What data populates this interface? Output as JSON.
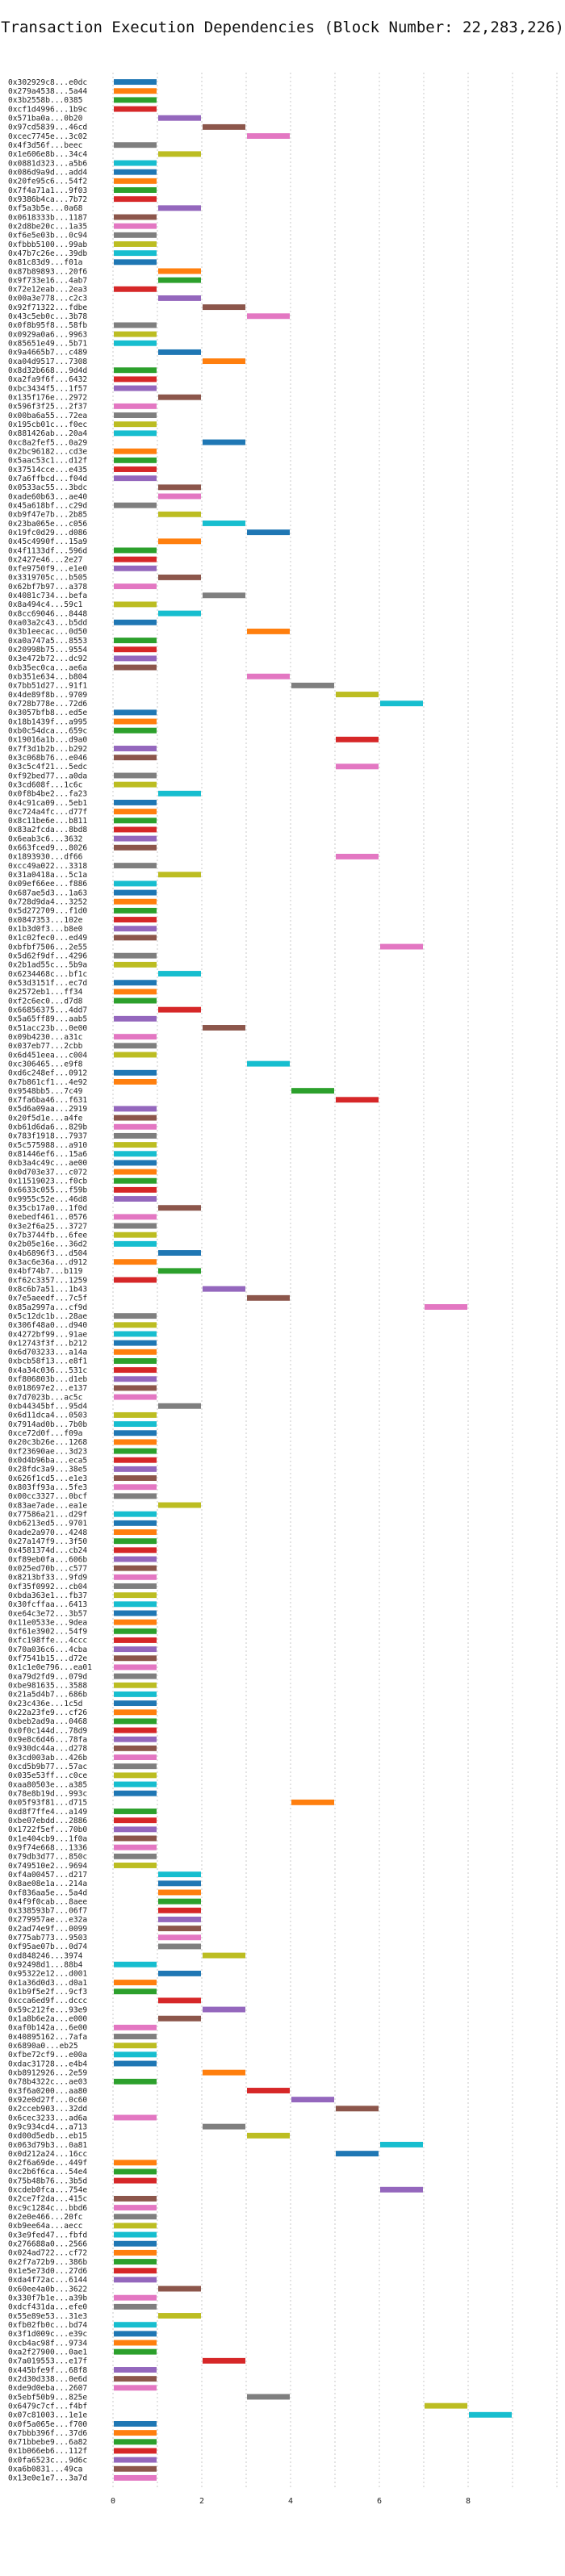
{
  "chart_data": {
    "type": "gantt-bar",
    "title": "Transaction Execution Dependencies (Block Number: 22,283,226)",
    "xlim": [
      0,
      10
    ],
    "xticks": [
      0,
      2,
      4,
      6,
      8
    ],
    "grid": "vertical dashed",
    "colors": [
      "#1f77b4",
      "#ff7f0e",
      "#2ca02c",
      "#d62728",
      "#9467bd",
      "#8c564b",
      "#e377c2",
      "#7f7f7f",
      "#bcbd22",
      "#17becf"
    ],
    "transactions": [
      {
        "hash": "0x302929c8...e0dc",
        "start": 0
      },
      {
        "hash": "0x279a4538...5a44",
        "start": 0
      },
      {
        "hash": "0x3b2558b...0385",
        "start": 0
      },
      {
        "hash": "0xcf1d4996...1b9c",
        "start": 0
      },
      {
        "hash": "0x571ba0a...0b20",
        "start": 1
      },
      {
        "hash": "0x97cd5839...46cd",
        "start": 2
      },
      {
        "hash": "0xcec7745e...3c02",
        "start": 3
      },
      {
        "hash": "0x4f3d56f...beec",
        "start": 0
      },
      {
        "hash": "0x1e606e8b...34c4",
        "start": 1
      },
      {
        "hash": "0x0881d323...a5b6",
        "start": 0
      },
      {
        "hash": "0x086d9a9d...add4",
        "start": 0
      },
      {
        "hash": "0x20fe95c6...54f2",
        "start": 0
      },
      {
        "hash": "0x7f4a71a1...9f03",
        "start": 0
      },
      {
        "hash": "0x9386b4ca...7b72",
        "start": 0
      },
      {
        "hash": "0xf5a3b5e...0a68",
        "start": 1
      },
      {
        "hash": "0x0618333b...1187",
        "start": 0
      },
      {
        "hash": "0x2d8be20c...1a35",
        "start": 0
      },
      {
        "hash": "0xf6e5e03b...0c94",
        "start": 0
      },
      {
        "hash": "0xfbbb5100...99ab",
        "start": 0
      },
      {
        "hash": "0x47b7c26e...39db",
        "start": 0
      },
      {
        "hash": "0x81c83d9...f01a",
        "start": 0
      },
      {
        "hash": "0x87b89893...20f6",
        "start": 1
      },
      {
        "hash": "0x9f733e16...4ab7",
        "start": 1
      },
      {
        "hash": "0x72e12eab...2ea3",
        "start": 0
      },
      {
        "hash": "0x00a3e778...c2c3",
        "start": 1
      },
      {
        "hash": "0x92f71322...fdbe",
        "start": 2
      },
      {
        "hash": "0x43c5eb0c...3b78",
        "start": 3
      },
      {
        "hash": "0x0f8b95f8...58fb",
        "start": 0
      },
      {
        "hash": "0x0929a0a6...9963",
        "start": 0
      },
      {
        "hash": "0x85651e49...5b71",
        "start": 0
      },
      {
        "hash": "0x9a4665b7...c489",
        "start": 1
      },
      {
        "hash": "0xa04d9517...7308",
        "start": 2
      },
      {
        "hash": "0x8d32b668...9d4d",
        "start": 0
      },
      {
        "hash": "0xa2fa9f6f...6432",
        "start": 0
      },
      {
        "hash": "0xbc3434f5...1f57",
        "start": 0
      },
      {
        "hash": "0x135f176e...2972",
        "start": 1
      },
      {
        "hash": "0x596f3f25...2f37",
        "start": 0
      },
      {
        "hash": "0x00ba6a55...72ea",
        "start": 0
      },
      {
        "hash": "0x195cb01c...f0ec",
        "start": 0
      },
      {
        "hash": "0x881426ab...20a4",
        "start": 0
      },
      {
        "hash": "0xc8a2fef5...0a29",
        "start": 2
      },
      {
        "hash": "0x2bc96182...cd3e",
        "start": 0
      },
      {
        "hash": "0x5aac53c1...d12f",
        "start": 0
      },
      {
        "hash": "0x37514cce...e435",
        "start": 0
      },
      {
        "hash": "0x7a6ffbcd...f04d",
        "start": 0
      },
      {
        "hash": "0x0533ac55...3bdc",
        "start": 1
      },
      {
        "hash": "0xade60b63...ae40",
        "start": 1
      },
      {
        "hash": "0x45a618bf...c29d",
        "start": 0
      },
      {
        "hash": "0xb9f47e7b...2b85",
        "start": 1
      },
      {
        "hash": "0x23ba065e...c056",
        "start": 2
      },
      {
        "hash": "0x19fc0d29...d086",
        "start": 3
      },
      {
        "hash": "0x45c4990f...15a9",
        "start": 1
      },
      {
        "hash": "0x4f1133df...596d",
        "start": 0
      },
      {
        "hash": "0x2427e46...2e27",
        "start": 0
      },
      {
        "hash": "0xfe9750f9...e1e0",
        "start": 0
      },
      {
        "hash": "0x3319705c...b505",
        "start": 1
      },
      {
        "hash": "0x62bf7b97...a378",
        "start": 0
      },
      {
        "hash": "0x4081c734...befa",
        "start": 2
      },
      {
        "hash": "0x8a494c4...59c1",
        "start": 0
      },
      {
        "hash": "0x8cc69046...8448",
        "start": 1
      },
      {
        "hash": "0xa03a2c43...b5dd",
        "start": 0
      },
      {
        "hash": "0x3b1eecac...0d50",
        "start": 3
      },
      {
        "hash": "0xa0a747a5...8553",
        "start": 0
      },
      {
        "hash": "0x20998b75...9554",
        "start": 0
      },
      {
        "hash": "0x3e472b72...dc92",
        "start": 0
      },
      {
        "hash": "0xb35ec0ca...ae6a",
        "start": 0
      },
      {
        "hash": "0xb351e634...b804",
        "start": 3
      },
      {
        "hash": "0x7bb51d27...91f1",
        "start": 4
      },
      {
        "hash": "0x4de89f8b...9709",
        "start": 5
      },
      {
        "hash": "0x728b778e...72d6",
        "start": 6
      },
      {
        "hash": "0x3057bfb8...ed5e",
        "start": 0
      },
      {
        "hash": "0x18b1439f...a995",
        "start": 0
      },
      {
        "hash": "0xb0c54dca...659c",
        "start": 0
      },
      {
        "hash": "0x19016a1b...d9a0",
        "start": 5
      },
      {
        "hash": "0x7f3d1b2b...b292",
        "start": 0
      },
      {
        "hash": "0x3c068b76...e046",
        "start": 0
      },
      {
        "hash": "0x3c5c4f21...5edc",
        "start": 5
      },
      {
        "hash": "0xf92bed77...a0da",
        "start": 0
      },
      {
        "hash": "0x3cd608f...1c6c",
        "start": 0
      },
      {
        "hash": "0x0f8b4be2...fa23",
        "start": 1
      },
      {
        "hash": "0x4c91ca09...5eb1",
        "start": 0
      },
      {
        "hash": "0xc724a4fc...d77f",
        "start": 0
      },
      {
        "hash": "0x8c11be6e...b811",
        "start": 0
      },
      {
        "hash": "0x83a2fcda...8bd8",
        "start": 0
      },
      {
        "hash": "0x6eab3c6...3632",
        "start": 0
      },
      {
        "hash": "0x663fced9...8026",
        "start": 0
      },
      {
        "hash": "0x1893930...df66",
        "start": 5
      },
      {
        "hash": "0xcc49a022...3318",
        "start": 0
      },
      {
        "hash": "0x31a0418a...5c1a",
        "start": 1
      },
      {
        "hash": "0x09ef66ee...f886",
        "start": 0
      },
      {
        "hash": "0x687ae5d3...1a63",
        "start": 0
      },
      {
        "hash": "0x728d9da4...3252",
        "start": 0
      },
      {
        "hash": "0x5d272709...f1d0",
        "start": 0
      },
      {
        "hash": "0x0847353...102e",
        "start": 0
      },
      {
        "hash": "0x1b3d0f3...b8e0",
        "start": 0
      },
      {
        "hash": "0x1c02fec0...ed49",
        "start": 0
      },
      {
        "hash": "0xbfbf7506...2e55",
        "start": 6
      },
      {
        "hash": "0x5d62f9df...4296",
        "start": 0
      },
      {
        "hash": "0x2b1ad55c...5b9a",
        "start": 0
      },
      {
        "hash": "0x6234468c...bf1c",
        "start": 1
      },
      {
        "hash": "0x53d3151f...ec7d",
        "start": 0
      },
      {
        "hash": "0x2572eb1...ff34",
        "start": 0
      },
      {
        "hash": "0xf2c6ec0...d7d8",
        "start": 0
      },
      {
        "hash": "0x66856375...4dd7",
        "start": 1
      },
      {
        "hash": "0x5a65ff89...aab5",
        "start": 0
      },
      {
        "hash": "0x51acc23b...0e00",
        "start": 2
      },
      {
        "hash": "0x09b4230...a31c",
        "start": 0
      },
      {
        "hash": "0x037eb77...2cbb",
        "start": 0
      },
      {
        "hash": "0x6d451eea...c004",
        "start": 0
      },
      {
        "hash": "0xc306465...e9f8",
        "start": 3
      },
      {
        "hash": "0xd6c248ef...0912",
        "start": 0
      },
      {
        "hash": "0x7b861cf1...4e92",
        "start": 0
      },
      {
        "hash": "0x9548bb5...7c49",
        "start": 4
      },
      {
        "hash": "0x7fa6ba46...f631",
        "start": 5
      },
      {
        "hash": "0x5d6a09aa...2919",
        "start": 0
      },
      {
        "hash": "0x20f5d1e...a4fe",
        "start": 0
      },
      {
        "hash": "0xb61d6da6...829b",
        "start": 0
      },
      {
        "hash": "0x783f1918...7937",
        "start": 0
      },
      {
        "hash": "0x5c575988...a910",
        "start": 0
      },
      {
        "hash": "0x81446ef6...15a6",
        "start": 0
      },
      {
        "hash": "0xb3a4c49c...ae00",
        "start": 0
      },
      {
        "hash": "0x0d703e37...c072",
        "start": 0
      },
      {
        "hash": "0x11519023...f0cb",
        "start": 0
      },
      {
        "hash": "0x6633c055...f59b",
        "start": 0
      },
      {
        "hash": "0x9955c52e...46d8",
        "start": 0
      },
      {
        "hash": "0x35cb17a0...1f0d",
        "start": 1
      },
      {
        "hash": "0xebedf461...0576",
        "start": 0
      },
      {
        "hash": "0x3e2f6a25...3727",
        "start": 0
      },
      {
        "hash": "0x7b3744fb...6fee",
        "start": 0
      },
      {
        "hash": "0x2b05e16e...36d2",
        "start": 0
      },
      {
        "hash": "0x4b6896f3...d504",
        "start": 1
      },
      {
        "hash": "0x3ac6e36a...d912",
        "start": 0
      },
      {
        "hash": "0x4bf74b7...b119",
        "start": 1
      },
      {
        "hash": "0xf62c3357...1259",
        "start": 0
      },
      {
        "hash": "0x8c6b7a51...1b43",
        "start": 2
      },
      {
        "hash": "0x7e5aeedf...7c5f",
        "start": 3
      },
      {
        "hash": "0x85a2997a...cf9d",
        "start": 7
      },
      {
        "hash": "0x5c12dc1b...28ae",
        "start": 0
      },
      {
        "hash": "0x306f48a0...d940",
        "start": 0
      },
      {
        "hash": "0x4272bf99...91ae",
        "start": 0
      },
      {
        "hash": "0x12743f3f...b212",
        "start": 0
      },
      {
        "hash": "0x6d703233...a14a",
        "start": 0
      },
      {
        "hash": "0xbcb58f13...e8f1",
        "start": 0
      },
      {
        "hash": "0x4a34c036...531c",
        "start": 0
      },
      {
        "hash": "0xf806803b...d1eb",
        "start": 0
      },
      {
        "hash": "0x018697e2...e137",
        "start": 0
      },
      {
        "hash": "0x7d7023b...ac5c",
        "start": 0
      },
      {
        "hash": "0xb44345bf...95d4",
        "start": 1
      },
      {
        "hash": "0x6d11dca4...0503",
        "start": 0
      },
      {
        "hash": "0x7914ad0b...7b0b",
        "start": 0
      },
      {
        "hash": "0xce72d0f...f09a",
        "start": 0
      },
      {
        "hash": "0x20c3b26e...1268",
        "start": 0
      },
      {
        "hash": "0xf23690ae...3d23",
        "start": 0
      },
      {
        "hash": "0x0d4b96ba...eca5",
        "start": 0
      },
      {
        "hash": "0x28fdc3a9...38e5",
        "start": 0
      },
      {
        "hash": "0x626f1cd5...e1e3",
        "start": 0
      },
      {
        "hash": "0x803ff93a...5fe3",
        "start": 0
      },
      {
        "hash": "0x00cc3327...0bcf",
        "start": 0
      },
      {
        "hash": "0x83ae7ade...ea1e",
        "start": 1
      },
      {
        "hash": "0x77586a21...d29f",
        "start": 0
      },
      {
        "hash": "0xb6213ed5...9701",
        "start": 0
      },
      {
        "hash": "0xade2a970...4248",
        "start": 0
      },
      {
        "hash": "0x27a147f9...3f50",
        "start": 0
      },
      {
        "hash": "0x4581374d...cb24",
        "start": 0
      },
      {
        "hash": "0xf89eb0fa...606b",
        "start": 0
      },
      {
        "hash": "0x025ed70b...c577",
        "start": 0
      },
      {
        "hash": "0x8213bf33...9fd9",
        "start": 0
      },
      {
        "hash": "0xf35f0992...cb04",
        "start": 0
      },
      {
        "hash": "0xbda363e1...fb37",
        "start": 0
      },
      {
        "hash": "0x30fcffaa...6413",
        "start": 0
      },
      {
        "hash": "0xe64c3e72...3b57",
        "start": 0
      },
      {
        "hash": "0x11e0533e...9dea",
        "start": 0
      },
      {
        "hash": "0xf61e3902...54f9",
        "start": 0
      },
      {
        "hash": "0xfc198ffe...4ccc",
        "start": 0
      },
      {
        "hash": "0x70a036c6...4cba",
        "start": 0
      },
      {
        "hash": "0xf7541b15...d72e",
        "start": 0
      },
      {
        "hash": "0x1c1e0e796...ea01",
        "start": 0
      },
      {
        "hash": "0xa79d2fd9...079d",
        "start": 0
      },
      {
        "hash": "0xbe981635...3588",
        "start": 0
      },
      {
        "hash": "0x21a5d4b7...686b",
        "start": 0
      },
      {
        "hash": "0x23c436e...1c5d",
        "start": 0
      },
      {
        "hash": "0x22a23fe9...cf26",
        "start": 0
      },
      {
        "hash": "0xbeb2ad9a...0468",
        "start": 0
      },
      {
        "hash": "0x0f0c144d...78d9",
        "start": 0
      },
      {
        "hash": "0x9e8c6d46...78fa",
        "start": 0
      },
      {
        "hash": "0x930dc44a...d278",
        "start": 0
      },
      {
        "hash": "0x3cd003ab...426b",
        "start": 0
      },
      {
        "hash": "0xcd5b9b77...57ac",
        "start": 0
      },
      {
        "hash": "0x035e53ff...c0ce",
        "start": 0
      },
      {
        "hash": "0xaa80503e...a385",
        "start": 0
      },
      {
        "hash": "0x78e8b19d...993c",
        "start": 0
      },
      {
        "hash": "0x05f93f81...d715",
        "start": 4
      },
      {
        "hash": "0xd8f7ffe4...a149",
        "start": 0
      },
      {
        "hash": "0xbe07ebdd...2886",
        "start": 0
      },
      {
        "hash": "0x1722f5ef...70b0",
        "start": 0
      },
      {
        "hash": "0x1e404cb9...1f0a",
        "start": 0
      },
      {
        "hash": "0x9f74e668...1336",
        "start": 0
      },
      {
        "hash": "0x79db3d77...850c",
        "start": 0
      },
      {
        "hash": "0x749510e2...9694",
        "start": 0
      },
      {
        "hash": "0xf4a00457...d217",
        "start": 1
      },
      {
        "hash": "0x8ae08e1a...214a",
        "start": 1
      },
      {
        "hash": "0xf836aa5e...5a4d",
        "start": 1
      },
      {
        "hash": "0x4f9f0cab...8aee",
        "start": 1
      },
      {
        "hash": "0x338593b7...06f7",
        "start": 1
      },
      {
        "hash": "0x279957ae...e32a",
        "start": 1
      },
      {
        "hash": "0x2ad74e9f...0099",
        "start": 1
      },
      {
        "hash": "0x775ab773...9503",
        "start": 1
      },
      {
        "hash": "0xf95ae07b...0d74",
        "start": 1
      },
      {
        "hash": "0xd848246...3974",
        "start": 2
      },
      {
        "hash": "0x92498d1...88b4",
        "start": 0
      },
      {
        "hash": "0x95322e12...d001",
        "start": 1
      },
      {
        "hash": "0x1a36d0d3...d0a1",
        "start": 0
      },
      {
        "hash": "0x1b9f5e2f...9cf3",
        "start": 0
      },
      {
        "hash": "0xcca6ed9f...dccc",
        "start": 1
      },
      {
        "hash": "0x59c212fe...93e9",
        "start": 2
      },
      {
        "hash": "0x1a8b6e2a...e000",
        "start": 1
      },
      {
        "hash": "0xaf0b142a...6e00",
        "start": 0
      },
      {
        "hash": "0x40895162...7afa",
        "start": 0
      },
      {
        "hash": "0x6890a0...eb25",
        "start": 0
      },
      {
        "hash": "0xfbe72cf9...e00a",
        "start": 0
      },
      {
        "hash": "0xdac31728...e4b4",
        "start": 0
      },
      {
        "hash": "0xb8912926...2e59",
        "start": 2
      },
      {
        "hash": "0x78b4322c...ae03",
        "start": 0
      },
      {
        "hash": "0x3f6a0200...aa80",
        "start": 3
      },
      {
        "hash": "0x92e0d27f...0c60",
        "start": 4
      },
      {
        "hash": "0x2cceb903...32dd",
        "start": 5
      },
      {
        "hash": "0x6cec3233...ad6a",
        "start": 0
      },
      {
        "hash": "0x9c934cd4...a713",
        "start": 2
      },
      {
        "hash": "0xd00d5edb...eb15",
        "start": 3
      },
      {
        "hash": "0x063d79b3...0a81",
        "start": 6
      },
      {
        "hash": "0x0d212a24...16cc",
        "start": 5
      },
      {
        "hash": "0x2f6a69de...449f",
        "start": 0
      },
      {
        "hash": "0xc2b6f6ca...54e4",
        "start": 0
      },
      {
        "hash": "0x75b48b76...3b5d",
        "start": 0
      },
      {
        "hash": "0xcdeb0fca...754e",
        "start": 6
      },
      {
        "hash": "0x2ce7f2da...415c",
        "start": 0
      },
      {
        "hash": "0xc9c1284c...bbd6",
        "start": 0
      },
      {
        "hash": "0x2e0e466...20fc",
        "start": 0
      },
      {
        "hash": "0xb9ee64a...aecc",
        "start": 0
      },
      {
        "hash": "0x3e9fed47...fbfd",
        "start": 0
      },
      {
        "hash": "0x276688a0...2566",
        "start": 0
      },
      {
        "hash": "0x024ad722...cf72",
        "start": 0
      },
      {
        "hash": "0x2f7a72b9...386b",
        "start": 0
      },
      {
        "hash": "0x1e5e73d0...27d6",
        "start": 0
      },
      {
        "hash": "0xda4f72ac...6144",
        "start": 0
      },
      {
        "hash": "0x60ee4a0b...3622",
        "start": 1
      },
      {
        "hash": "0x330f7b1e...a39b",
        "start": 0
      },
      {
        "hash": "0xdcf431da...efe0",
        "start": 0
      },
      {
        "hash": "0x55e89e53...31e3",
        "start": 1
      },
      {
        "hash": "0xfb02fb0c...bd74",
        "start": 0
      },
      {
        "hash": "0x3f1d009c...e39c",
        "start": 0
      },
      {
        "hash": "0xcb4ac98f...9734",
        "start": 0
      },
      {
        "hash": "0xa2f27900...0ae1",
        "start": 0
      },
      {
        "hash": "0x7a019553...e17f",
        "start": 2
      },
      {
        "hash": "0x445bfe9f...68f8",
        "start": 0
      },
      {
        "hash": "0x2d30d338...0e6d",
        "start": 0
      },
      {
        "hash": "0xde9d0eba...2607",
        "start": 0
      },
      {
        "hash": "0x5ebf50b9...825e",
        "start": 3
      },
      {
        "hash": "0x6479c7cf...f4bf",
        "start": 7
      },
      {
        "hash": "0x07c81003...1e1e",
        "start": 8
      },
      {
        "hash": "0x0f5a065e...f700",
        "start": 0
      },
      {
        "hash": "0x7bbb396f...37d6",
        "start": 0
      },
      {
        "hash": "0x71bbebe9...6a82",
        "start": 0
      },
      {
        "hash": "0x1b066eb6...112f",
        "start": 0
      },
      {
        "hash": "0x0fa6523c...9d6c",
        "start": 0
      },
      {
        "hash": "0xa6b0831...49ca",
        "start": 0
      },
      {
        "hash": "0x13e0e1e7...3a7d",
        "start": 0
      }
    ]
  }
}
